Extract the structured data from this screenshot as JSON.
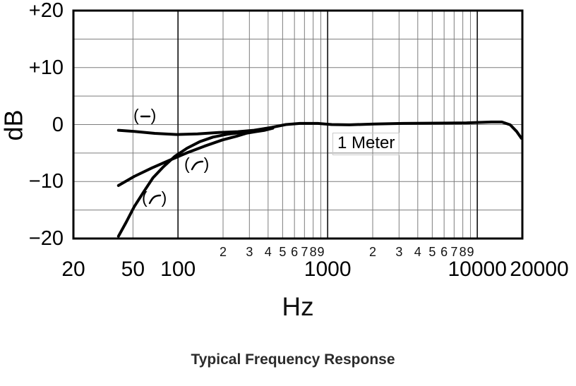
{
  "chart_data": {
    "type": "line",
    "title": "Typical Frequency Response",
    "xlabel": "Hz",
    "ylabel": "dB",
    "x_scale": "log",
    "x_range_hz": [
      20,
      20000
    ],
    "y_range_db": [
      -20,
      20
    ],
    "grid": true,
    "annotation": "1 Meter",
    "y_tick_labels": [
      {
        "db": 20,
        "label": "+20"
      },
      {
        "db": 10,
        "label": "+10"
      },
      {
        "db": 0,
        "label": "0"
      },
      {
        "db": -10,
        "label": "−10"
      },
      {
        "db": -20,
        "label": "−20"
      }
    ],
    "y_grid_db": [
      15,
      10,
      5,
      0,
      -5,
      -10,
      -15
    ],
    "x_major_ticks": [
      {
        "hz": 20,
        "label": "20"
      },
      {
        "hz": 50,
        "label": "50"
      },
      {
        "hz": 100,
        "label": "100"
      },
      {
        "hz": 1000,
        "label": "1000"
      },
      {
        "hz": 10000,
        "label": "10000"
      },
      {
        "hz": 20000,
        "label": "20000"
      }
    ],
    "x_minor_tick_labels": [
      {
        "hz": 200,
        "label": "2"
      },
      {
        "hz": 300,
        "label": "3"
      },
      {
        "hz": 400,
        "label": "4"
      },
      {
        "hz": 500,
        "label": "5"
      },
      {
        "hz": 600,
        "label": "6"
      },
      {
        "hz": 700,
        "label": "7"
      },
      {
        "hz": 800,
        "label": "8"
      },
      {
        "hz": 900,
        "label": "9"
      },
      {
        "hz": 2000,
        "label": "2"
      },
      {
        "hz": 3000,
        "label": "3"
      },
      {
        "hz": 4000,
        "label": "4"
      },
      {
        "hz": 5000,
        "label": "5"
      },
      {
        "hz": 6000,
        "label": "6"
      },
      {
        "hz": 7000,
        "label": "7"
      },
      {
        "hz": 8000,
        "label": "8"
      },
      {
        "hz": 9000,
        "label": "9"
      }
    ],
    "x_grid_hz": [
      50,
      100,
      200,
      300,
      400,
      500,
      600,
      700,
      800,
      900,
      1000,
      2000,
      3000,
      4000,
      5000,
      6000,
      7000,
      8000,
      9000,
      10000
    ],
    "x_grid_major_hz": [
      100,
      1000,
      10000
    ],
    "colors": {
      "curve": "#000000",
      "grid_minor": "#7d7d7d",
      "grid_major": "#1a1a1a",
      "border": "#000000"
    },
    "legend_markers": [
      {
        "open": "(",
        "glyph": "flat-line",
        "close": ")"
      },
      {
        "open": "(",
        "glyph": "shelf-curve",
        "close": ")"
      },
      {
        "open": "(",
        "glyph": "shelf-curve",
        "close": ")"
      }
    ],
    "series": [
      {
        "name": "flat-response",
        "points_hz_db": [
          [
            40,
            -1.0
          ],
          [
            51,
            -1.2
          ],
          [
            70,
            -1.55
          ],
          [
            98,
            -1.75
          ],
          [
            135,
            -1.65
          ],
          [
            187,
            -1.4
          ],
          [
            251,
            -1.25
          ],
          [
            322,
            -1.0
          ],
          [
            423,
            -0.5
          ],
          [
            526,
            0.0
          ],
          [
            653,
            0.2
          ],
          [
            857,
            0.2
          ],
          [
            1065,
            0.0
          ],
          [
            1400,
            -0.05
          ],
          [
            2050,
            0.1
          ],
          [
            3180,
            0.2
          ],
          [
            5460,
            0.25
          ],
          [
            8470,
            0.3
          ],
          [
            12400,
            0.45
          ],
          [
            14600,
            0.45
          ],
          [
            16600,
            -0.05
          ],
          [
            18300,
            -1.2
          ],
          [
            19700,
            -2.4
          ]
        ]
      },
      {
        "name": "gradual-low-frequency-rolloff",
        "points_hz_db": [
          [
            40,
            -10.7
          ],
          [
            51,
            -9.1
          ],
          [
            67,
            -7.6
          ],
          [
            88,
            -6.25
          ],
          [
            115,
            -4.95
          ],
          [
            150,
            -3.8
          ],
          [
            198,
            -2.7
          ],
          [
            246,
            -2.05
          ],
          [
            289,
            -1.5
          ],
          [
            329,
            -1.25
          ],
          [
            380,
            -1.0
          ],
          [
            430,
            -0.65
          ]
        ]
      },
      {
        "name": "steep-low-frequency-rolloff",
        "points_hz_db": [
          [
            40,
            -19.6
          ],
          [
            45,
            -17.15
          ],
          [
            51,
            -14.4
          ],
          [
            59,
            -11.8
          ],
          [
            68,
            -9.35
          ],
          [
            80,
            -7.4
          ],
          [
            95,
            -5.6
          ],
          [
            115,
            -4.15
          ],
          [
            140,
            -3.0
          ],
          [
            171,
            -2.2
          ],
          [
            214,
            -1.7
          ],
          [
            265,
            -1.4
          ],
          [
            315,
            -1.2
          ],
          [
            350,
            -1.1
          ]
        ]
      }
    ]
  }
}
